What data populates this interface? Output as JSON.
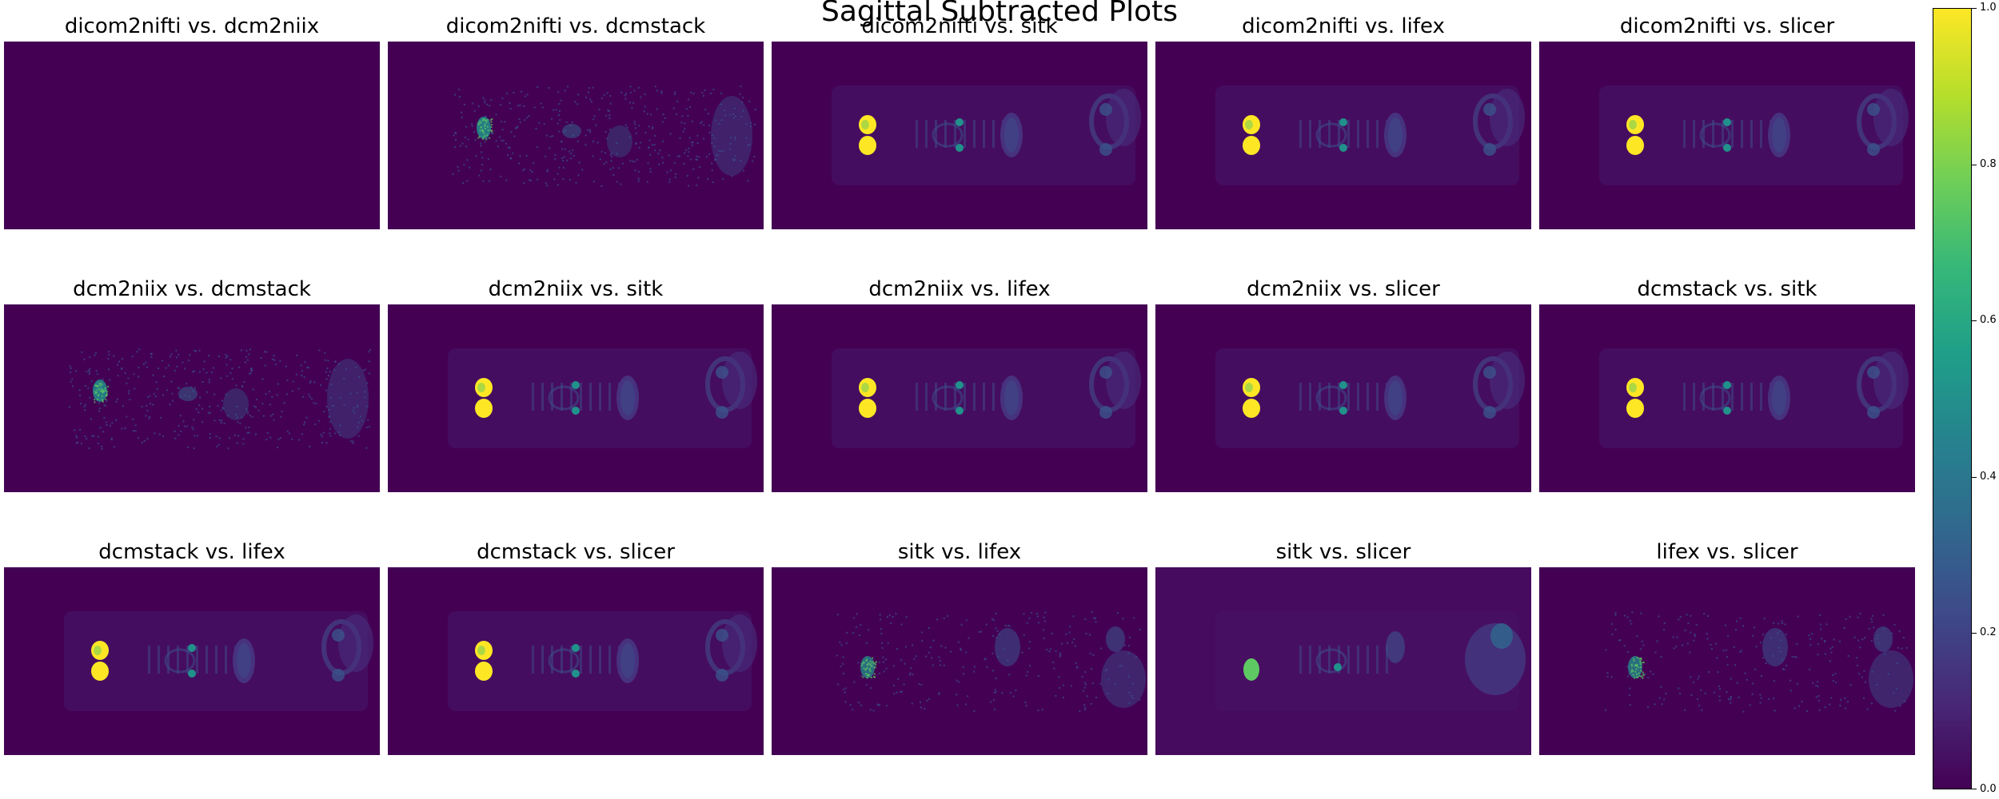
{
  "title": "Sagittal Subtracted Plots",
  "chart_data": {
    "type": "heatmap",
    "title": "Sagittal Subtracted Plots",
    "grid": false,
    "layout": {
      "rows": 3,
      "cols": 5
    },
    "colormap": "viridis",
    "colors": {
      "background": "#440154",
      "low": "#440154",
      "mid_low": "#3b528b",
      "mid": "#21918c",
      "mid_high": "#5ec962",
      "high": "#fde725"
    },
    "panels": [
      {
        "title": "dicom2nifti vs. dcm2niix",
        "pattern": "empty"
      },
      {
        "title": "dicom2nifti vs. dcmstack",
        "pattern": "noise"
      },
      {
        "title": "dicom2nifti vs. sitk",
        "pattern": "full"
      },
      {
        "title": "dicom2nifti vs. lifex",
        "pattern": "full"
      },
      {
        "title": "dicom2nifti vs. slicer",
        "pattern": "full"
      },
      {
        "title": "dcm2niix vs. dcmstack",
        "pattern": "noise"
      },
      {
        "title": "dcm2niix vs. sitk",
        "pattern": "full"
      },
      {
        "title": "dcm2niix vs. lifex",
        "pattern": "full"
      },
      {
        "title": "dcm2niix vs. slicer",
        "pattern": "full"
      },
      {
        "title": "dcmstack vs. sitk",
        "pattern": "full"
      },
      {
        "title": "dcmstack vs. lifex",
        "pattern": "full"
      },
      {
        "title": "dcmstack vs. slicer",
        "pattern": "full"
      },
      {
        "title": "sitk vs. lifex",
        "pattern": "noise_kidney"
      },
      {
        "title": "sitk vs. slicer",
        "pattern": "slicer"
      },
      {
        "title": "lifex vs. slicer",
        "pattern": "noise_kidney"
      }
    ],
    "colorbar": {
      "range": [
        0.0,
        1.0
      ],
      "ticks": [
        0.0,
        0.2,
        0.4,
        0.6,
        0.8,
        1.0
      ],
      "tick_labels": [
        "0.0",
        "0.2",
        "0.4",
        "0.6",
        "0.8",
        "1.0"
      ]
    }
  }
}
